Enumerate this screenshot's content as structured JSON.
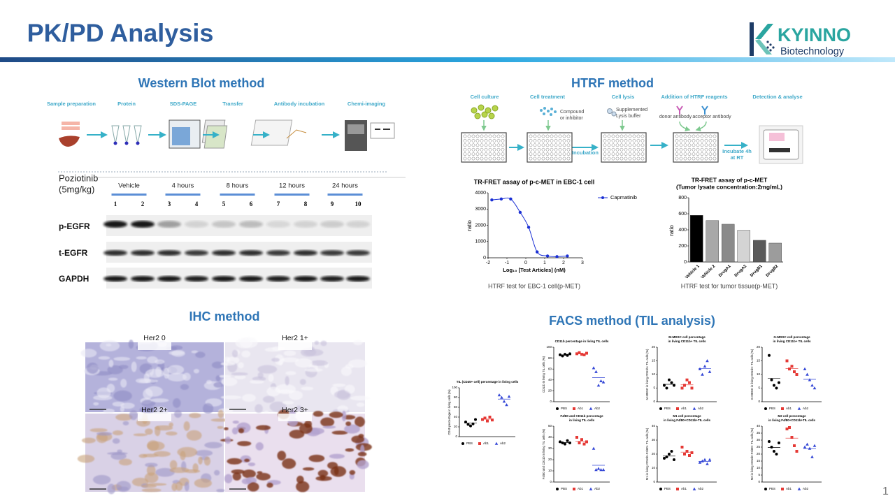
{
  "header": {
    "title": "PK/PD Analysis",
    "logo": "KYINNO",
    "logo_sub": "Biotechnology"
  },
  "page_number": "1",
  "western_blot": {
    "title": "Western Blot method",
    "steps": [
      "Sample preparation",
      "Protein",
      "SDS-PAGE",
      "Transfer",
      "Antibody incubation",
      "Chemi-imaging"
    ],
    "treatment": [
      "Poziotinib",
      "(5mg/kg)"
    ],
    "groups": [
      "Vehicle",
      "4 hours",
      "8 hours",
      "12 hours",
      "24 hours"
    ],
    "lanes": [
      "1",
      "2",
      "3",
      "4",
      "5",
      "6",
      "7",
      "8",
      "9",
      "10"
    ],
    "rows": [
      "p-EGFR",
      "t-EGFR",
      "GAPDH"
    ]
  },
  "htrf": {
    "title": "HTRF method",
    "steps": [
      "Cell culture",
      "Cell treatment",
      "Cell lysis",
      "Addition of HTRF reagents",
      "Detection & analyse"
    ],
    "treatment_note": [
      "Compound",
      "or inhibitor"
    ],
    "lysis_note": [
      "Supplemented",
      "Lysis buffer"
    ],
    "donor": "donor antibody",
    "acceptor": "acceptor antibody",
    "incubation": "Incubation",
    "incubate_note": [
      "Incubate 4h",
      "at RT"
    ]
  },
  "ihc": {
    "title": "IHC method",
    "panels": [
      "Her2 0",
      "Her2 1+",
      "Her2 2+",
      "Her2 3+"
    ]
  },
  "facs": {
    "title": "FACS method (TIL analysis)"
  },
  "chart_data": [
    {
      "type": "line",
      "title": "TR-FRET assay of  p-c-MET in EBC-1 cell",
      "x_label": "Log₁₀ [Test Articles] (nM)",
      "y_label": "ratio",
      "x": [
        -1.8,
        -1.3,
        -0.8,
        -0.3,
        0.15,
        0.6,
        1.15,
        1.65,
        2.2
      ],
      "series": [
        {
          "name": "Capmatinib",
          "color": "#1a2fd4",
          "values": [
            3560,
            3620,
            3620,
            2800,
            1880,
            360,
            110,
            70,
            110
          ]
        }
      ],
      "xlim": [
        -2,
        3
      ],
      "xticks": [
        -2,
        -1,
        0,
        1,
        2,
        3
      ],
      "ylim": [
        0,
        4000
      ],
      "yticks": [
        0,
        1000,
        2000,
        3000,
        4000
      ],
      "legend": "right",
      "caption": "HTRF test for EBC-1 cell(p-MET)"
    },
    {
      "type": "bar",
      "title": [
        "TR-FRET assay of p-c-MET",
        "(Tumor lysate concentration:2mg/mL)"
      ],
      "y_label": "ratio",
      "categories": [
        "Vehicle 1",
        "Vehicle 2",
        "DrugA1",
        "DrugA2",
        "DrugB1",
        "DrugB2"
      ],
      "values": [
        580,
        515,
        470,
        395,
        270,
        235
      ],
      "colors": [
        "#000000",
        "#a8a8a8",
        "#8a8a8a",
        "#d4d4d4",
        "#5a5a5a",
        "#9c9c9c"
      ],
      "ylim": [
        0,
        800
      ],
      "yticks": [
        0,
        200,
        400,
        600,
        800
      ],
      "caption": "HTRF test for tumor tissue(p-MET)"
    },
    {
      "type": "strip",
      "title": [
        "TIL (CD45+ cell) percentage in living cells"
      ],
      "y_label": "CD45 percentage in living cells (%)",
      "ylim": [
        0,
        100
      ],
      "yticks": [
        0,
        20,
        40,
        60,
        80,
        100
      ],
      "series": [
        {
          "name": "PBS",
          "color": "#000000",
          "marker": "circle",
          "values": [
            30,
            25,
            22,
            26,
            35
          ]
        },
        {
          "name": "Ab1",
          "color": "#e53935",
          "marker": "square",
          "values": [
            35,
            38,
            32,
            40,
            34
          ]
        },
        {
          "name": "Ab2",
          "color": "#3346d6",
          "marker": "triangle",
          "values": [
            85,
            80,
            72,
            65,
            82
          ]
        }
      ]
    },
    {
      "type": "strip",
      "title": [
        "CD11b percentage in living TIL cells"
      ],
      "y_label": "CD11b in living TIL cells (%)",
      "ylim": [
        0,
        100
      ],
      "yticks": [
        0,
        20,
        40,
        60,
        80,
        100
      ],
      "series": [
        {
          "name": "PBS",
          "color": "#000000",
          "marker": "circle",
          "values": [
            86,
            84,
            87,
            85,
            88
          ]
        },
        {
          "name": "Ab1",
          "color": "#e53935",
          "marker": "square",
          "values": [
            88,
            90,
            87,
            86,
            89
          ]
        },
        {
          "name": "Ab2",
          "color": "#3346d6",
          "marker": "triangle",
          "values": [
            62,
            55,
            30,
            38,
            36
          ]
        }
      ]
    },
    {
      "type": "strip",
      "title": [
        "M-MDSC cell percentage",
        "in living CD11b+ TIL cells"
      ],
      "y_label": "M-MDSC in living CD11b+ TIL cells (%)",
      "ylim": [
        0,
        20
      ],
      "yticks": [
        0,
        5,
        10,
        15,
        20
      ],
      "series": [
        {
          "name": "PBS",
          "color": "#000000",
          "marker": "circle",
          "values": [
            6,
            5,
            8,
            7,
            6
          ]
        },
        {
          "name": "Ab1",
          "color": "#e53935",
          "marker": "square",
          "values": [
            5,
            6,
            8,
            7,
            5
          ]
        },
        {
          "name": "Ab2",
          "color": "#3346d6",
          "marker": "triangle",
          "values": [
            12,
            10,
            13,
            15,
            11
          ]
        }
      ]
    },
    {
      "type": "strip",
      "title": [
        "G-MDSC cell percentage",
        "in living CD11b+ TIL cells"
      ],
      "y_label": "G-MDSC in living CD11b+ TIL cells (%)",
      "ylim": [
        0,
        20
      ],
      "yticks": [
        0,
        5,
        10,
        15,
        20
      ],
      "series": [
        {
          "name": "PBS",
          "color": "#000000",
          "marker": "circle",
          "values": [
            17,
            8,
            6,
            5,
            7
          ]
        },
        {
          "name": "Ab1",
          "color": "#e53935",
          "marker": "square",
          "values": [
            15,
            12,
            13,
            11,
            10
          ]
        },
        {
          "name": "Ab2",
          "color": "#3346d6",
          "marker": "triangle",
          "values": [
            12,
            10,
            8,
            6,
            5
          ]
        }
      ]
    },
    {
      "type": "strip",
      "title": [
        "F4/80 and CD11b percentage",
        "in living TIL cells"
      ],
      "y_label": "F4/80 and CD11b in living TIL cells (%)",
      "ylim": [
        0,
        50
      ],
      "yticks": [
        0,
        10,
        20,
        30,
        40,
        50
      ],
      "series": [
        {
          "name": "PBS",
          "color": "#000000",
          "marker": "circle",
          "values": [
            36,
            35,
            34,
            37,
            35
          ]
        },
        {
          "name": "Ab1",
          "color": "#e53935",
          "marker": "square",
          "values": [
            40,
            35,
            38,
            34,
            36
          ]
        },
        {
          "name": "Ab2",
          "color": "#3346d6",
          "marker": "triangle",
          "values": [
            30,
            11,
            12,
            11,
            11
          ]
        }
      ]
    },
    {
      "type": "strip",
      "title": [
        "M1 cell percentage",
        "in living F4/80+CD11b+TIL cells"
      ],
      "y_label": "M1 in living CD11b+F4/80+ TIL cells (%)",
      "ylim": [
        0,
        40
      ],
      "yticks": [
        0,
        10,
        20,
        30,
        40
      ],
      "series": [
        {
          "name": "PBS",
          "color": "#000000",
          "marker": "circle",
          "values": [
            17,
            18,
            20,
            22,
            16
          ]
        },
        {
          "name": "Ab1",
          "color": "#e53935",
          "marker": "square",
          "values": [
            25,
            20,
            22,
            19,
            21
          ]
        },
        {
          "name": "Ab2",
          "color": "#3346d6",
          "marker": "triangle",
          "values": [
            14,
            15,
            16,
            13,
            16
          ]
        }
      ]
    },
    {
      "type": "strip",
      "title": [
        "M2 cell percentage",
        "in living F4/80+CD11b+TIL cells"
      ],
      "y_label": "M2 in living CD11b+F4/80+ TIL cells (%)",
      "ylim": [
        0,
        40
      ],
      "yticks": [
        0,
        5,
        10,
        15,
        20,
        25,
        30,
        35,
        40
      ],
      "series": [
        {
          "name": "PBS",
          "color": "#000000",
          "marker": "circle",
          "values": [
            29,
            25,
            22,
            20,
            28
          ]
        },
        {
          "name": "Ab1",
          "color": "#e53935",
          "marker": "square",
          "values": [
            38,
            39,
            32,
            26,
            22
          ]
        },
        {
          "name": "Ab2",
          "color": "#3346d6",
          "marker": "triangle",
          "values": [
            25,
            27,
            24,
            18,
            26
          ]
        }
      ]
    }
  ]
}
